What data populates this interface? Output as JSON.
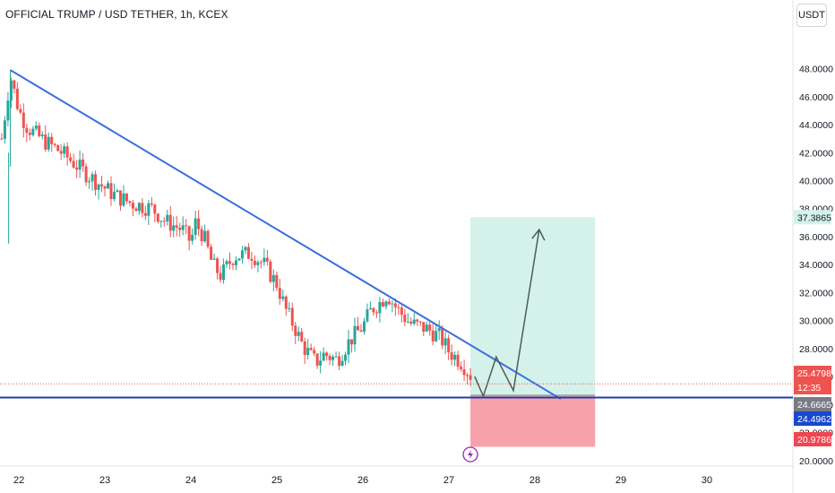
{
  "header": {
    "title": "OFFICIAL TRUMP / USD TETHER, 1h, KCEX",
    "currency_button": "USDT"
  },
  "colors": {
    "up": "#26a69a",
    "down": "#ef5350",
    "trendline": "#3a6fe0",
    "support": "#1b3fa8",
    "target_zone": "#d4f2ea",
    "stop_zone": "#f7a1aa",
    "path": "#4f5b57"
  },
  "chart_data": {
    "type": "candlestick",
    "title": "OFFICIAL TRUMP / USD TETHER, 1h, KCEX",
    "x_ticks": [
      "22",
      "23",
      "24",
      "25",
      "26",
      "27",
      "28",
      "29",
      "30"
    ],
    "y_ticks": [
      "20.0000",
      "22.0000",
      "24.0000",
      "26.0000",
      "28.0000",
      "30.0000",
      "32.0000",
      "34.0000",
      "36.0000",
      "38.0000",
      "40.0000",
      "42.0000",
      "44.0000",
      "46.0000",
      "48.0000"
    ],
    "y_range": [
      19.6,
      50.6
    ],
    "x_range": [
      21.78,
      31.0
    ],
    "price_labels": [
      {
        "text": "37.3865",
        "value": 37.3865,
        "style": "target"
      },
      {
        "text": "25.4798",
        "value": 25.4798,
        "style": "last"
      },
      {
        "text": "12:35",
        "value": 25.0,
        "style": "countdown"
      },
      {
        "text": "24.6665",
        "value": 24.6665,
        "style": "entry"
      },
      {
        "text": "24.4962",
        "value": 24.4962,
        "style": "support"
      },
      {
        "text": "20.9786",
        "value": 20.9786,
        "style": "stop"
      }
    ],
    "price_path": [
      [
        21.8,
        43.0
      ],
      [
        21.9,
        47.5
      ],
      [
        22.0,
        45.0
      ],
      [
        22.1,
        43.8
      ],
      [
        22.3,
        42.8
      ],
      [
        22.5,
        42.0
      ],
      [
        22.8,
        40.4
      ],
      [
        23.1,
        39.0
      ],
      [
        23.3,
        38.4
      ],
      [
        23.55,
        38.0
      ],
      [
        23.7,
        37.1
      ],
      [
        23.9,
        36.5
      ],
      [
        24.0,
        35.6
      ],
      [
        24.05,
        37.0
      ],
      [
        24.15,
        36.0
      ],
      [
        24.25,
        34.0
      ],
      [
        24.35,
        33.2
      ],
      [
        24.5,
        34.6
      ],
      [
        24.7,
        34.8
      ],
      [
        24.85,
        34.0
      ],
      [
        25.0,
        32.6
      ],
      [
        25.1,
        30.8
      ],
      [
        25.2,
        29.6
      ],
      [
        25.3,
        28.2
      ],
      [
        25.45,
        27.0
      ],
      [
        25.55,
        27.6
      ],
      [
        25.7,
        27.2
      ],
      [
        25.85,
        28.6
      ],
      [
        26.0,
        29.6
      ],
      [
        26.1,
        30.8
      ],
      [
        26.2,
        31.3
      ],
      [
        26.28,
        31.9
      ],
      [
        26.4,
        30.8
      ],
      [
        26.55,
        29.8
      ],
      [
        26.75,
        29.4
      ],
      [
        26.9,
        28.8
      ],
      [
        27.0,
        27.8
      ],
      [
        27.15,
        27.0
      ],
      [
        27.25,
        26.1
      ]
    ],
    "trendline": {
      "x1": 21.9,
      "y1": 47.9,
      "x2": 28.3,
      "y2": 24.4
    },
    "support_level": 24.4962,
    "position": {
      "x_start": 27.25,
      "x_end": 28.7,
      "entry": 24.6665,
      "target": 37.3865,
      "stop": 20.9786
    },
    "projection_path": [
      [
        27.3,
        26.0
      ],
      [
        27.4,
        24.6
      ],
      [
        27.55,
        27.4
      ],
      [
        27.75,
        25.0
      ],
      [
        28.05,
        36.5
      ]
    ],
    "marker_x": 27.25,
    "marker_icon": "lightning-icon"
  }
}
